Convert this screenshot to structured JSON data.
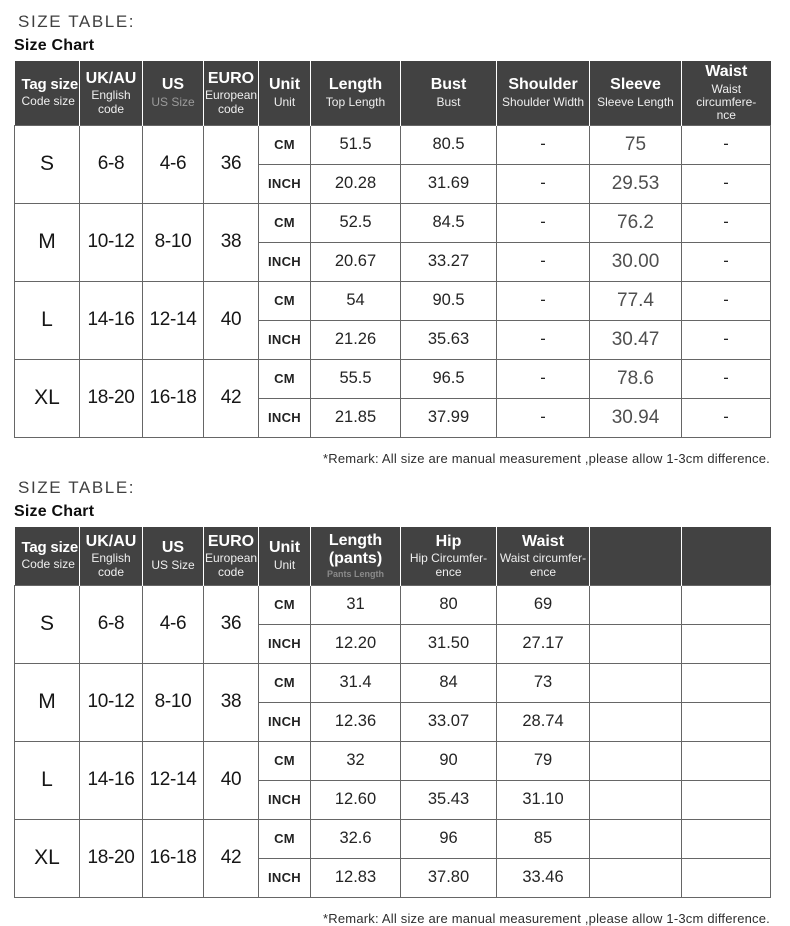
{
  "page": {
    "colors": {
      "header_bg": "#424242",
      "header_text": "#ffffff",
      "muted_sub_text": "#9b9b9b",
      "grid_border": "#666666",
      "body_text": "#1f1f1f"
    },
    "tables": [
      {
        "eyebrow": "SIZE TABLE:",
        "title": "Size Chart",
        "remark": "*Remark: All size are manual measurement ,please allow 1-3cm difference.",
        "columns": [
          {
            "main": "Tag size",
            "sub": "Code size"
          },
          {
            "main": "UK/AU",
            "sub": "English\ncode"
          },
          {
            "main": "US",
            "sub": "US Size"
          },
          {
            "main": "EURO",
            "sub": "European\ncode"
          },
          {
            "main": "Unit",
            "sub": "Unit"
          },
          {
            "main": "Length",
            "sub": "Top Length"
          },
          {
            "main": "Bust",
            "sub": "Bust"
          },
          {
            "main": "Shoulder",
            "sub": "Shoulder Width"
          },
          {
            "main": "Sleeve",
            "sub": "Sleeve Length"
          },
          {
            "main": "Waist",
            "sub": "Waist circumfere-\nnce"
          }
        ],
        "unit_labels": [
          "CM",
          "INCH"
        ],
        "rows": [
          {
            "tag": "S",
            "uk_au": "6-8",
            "us": "4-6",
            "euro": "36",
            "cm": [
              "51.5",
              "80.5",
              "-",
              "75",
              "-"
            ],
            "inch": [
              "20.28",
              "31.69",
              "-",
              "29.53",
              "-"
            ]
          },
          {
            "tag": "M",
            "uk_au": "10-12",
            "us": "8-10",
            "euro": "38",
            "cm": [
              "52.5",
              "84.5",
              "-",
              "76.2",
              "-"
            ],
            "inch": [
              "20.67",
              "33.27",
              "-",
              "30.00",
              "-"
            ]
          },
          {
            "tag": "L",
            "uk_au": "14-16",
            "us": "12-14",
            "euro": "40",
            "cm": [
              "54",
              "90.5",
              "-",
              "77.4",
              "-"
            ],
            "inch": [
              "21.26",
              "35.63",
              "-",
              "30.47",
              "-"
            ]
          },
          {
            "tag": "XL",
            "uk_au": "18-20",
            "us": "16-18",
            "euro": "42",
            "cm": [
              "55.5",
              "96.5",
              "-",
              "78.6",
              "-"
            ],
            "inch": [
              "21.85",
              "37.99",
              "-",
              "30.94",
              "-"
            ]
          }
        ]
      },
      {
        "eyebrow": "SIZE TABLE:",
        "title": "Size Chart",
        "remark": "*Remark: All size are manual measurement ,please allow 1-3cm difference.",
        "columns": [
          {
            "main": "Tag size",
            "sub": "Code size"
          },
          {
            "main": "UK/AU",
            "sub": "English\ncode"
          },
          {
            "main": "US",
            "sub": "US Size"
          },
          {
            "main": "EURO",
            "sub": "European\ncode"
          },
          {
            "main": "Unit",
            "sub": "Unit"
          },
          {
            "main": "Length\n(pants)",
            "sub": "Pants Length"
          },
          {
            "main": "Hip",
            "sub": "Hip Circumfer-\nence"
          },
          {
            "main": "Waist",
            "sub": "Waist circumfer-\nence"
          },
          {
            "main": "",
            "sub": ""
          },
          {
            "main": "",
            "sub": ""
          }
        ],
        "unit_labels": [
          "CM",
          "INCH"
        ],
        "rows": [
          {
            "tag": "S",
            "uk_au": "6-8",
            "us": "4-6",
            "euro": "36",
            "cm": [
              "31",
              "80",
              "69",
              "",
              ""
            ],
            "inch": [
              "12.20",
              "31.50",
              "27.17",
              "",
              ""
            ]
          },
          {
            "tag": "M",
            "uk_au": "10-12",
            "us": "8-10",
            "euro": "38",
            "cm": [
              "31.4",
              "84",
              "73",
              "",
              ""
            ],
            "inch": [
              "12.36",
              "33.07",
              "28.74",
              "",
              ""
            ]
          },
          {
            "tag": "L",
            "uk_au": "14-16",
            "us": "12-14",
            "euro": "40",
            "cm": [
              "32",
              "90",
              "79",
              "",
              ""
            ],
            "inch": [
              "12.60",
              "35.43",
              "31.10",
              "",
              ""
            ]
          },
          {
            "tag": "XL",
            "uk_au": "18-20",
            "us": "16-18",
            "euro": "42",
            "cm": [
              "32.6",
              "96",
              "85",
              "",
              ""
            ],
            "inch": [
              "12.83",
              "37.80",
              "33.46",
              "",
              ""
            ]
          }
        ]
      }
    ]
  }
}
